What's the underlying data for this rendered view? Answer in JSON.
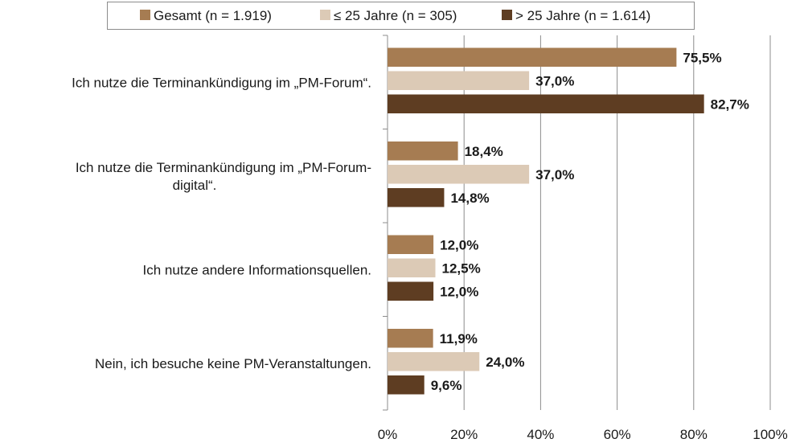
{
  "chart_data": {
    "type": "bar",
    "orientation": "horizontal",
    "categories": [
      [
        "Ich nutze die Terminankündigung im „PM-Forum“."
      ],
      [
        "Ich nutze die Terminankündigung im „PM-Forum-",
        "digital“."
      ],
      [
        "Ich nutze andere Informationsquellen."
      ],
      [
        "Nein, ich besuche keine PM-Veranstaltungen."
      ]
    ],
    "series": [
      {
        "name": "Gesamt (n = 1.919)",
        "color": "#a67c52",
        "values": [
          75.5,
          18.4,
          12.0,
          11.9
        ],
        "labels": [
          "75,5%",
          "18,4%",
          "12,0%",
          "11,9%"
        ]
      },
      {
        "name": "≤ 25 Jahre (n = 305)",
        "color": "#dccab6",
        "values": [
          37.0,
          37.0,
          12.5,
          24.0
        ],
        "labels": [
          "37,0%",
          "37,0%",
          "12,5%",
          "24,0%"
        ]
      },
      {
        "name": "> 25 Jahre (n = 1.614)",
        "color": "#5e3d22",
        "values": [
          82.7,
          14.8,
          12.0,
          9.6
        ],
        "labels": [
          "82,7%",
          "14,8%",
          "12,0%",
          "9,6%"
        ]
      }
    ],
    "xlim": [
      0,
      100
    ],
    "ticks": [
      0,
      20,
      40,
      60,
      80,
      100
    ],
    "tick_labels": [
      "0%",
      "20%",
      "40%",
      "60%",
      "80%",
      "100%"
    ],
    "grid": true,
    "legend_position": "top"
  }
}
